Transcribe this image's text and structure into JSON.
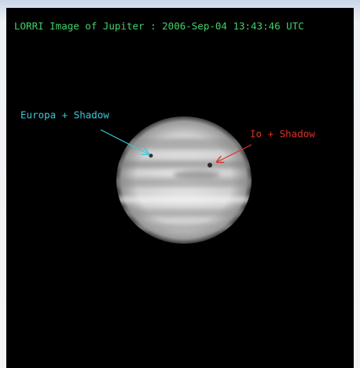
{
  "header": {
    "title": "LORRI Image of Jupiter : 2006-Sep-04 13:43:46 UTC"
  },
  "annotations": [
    {
      "label": "Europa + Shadow"
    },
    {
      "label": "Io + Shadow"
    }
  ]
}
